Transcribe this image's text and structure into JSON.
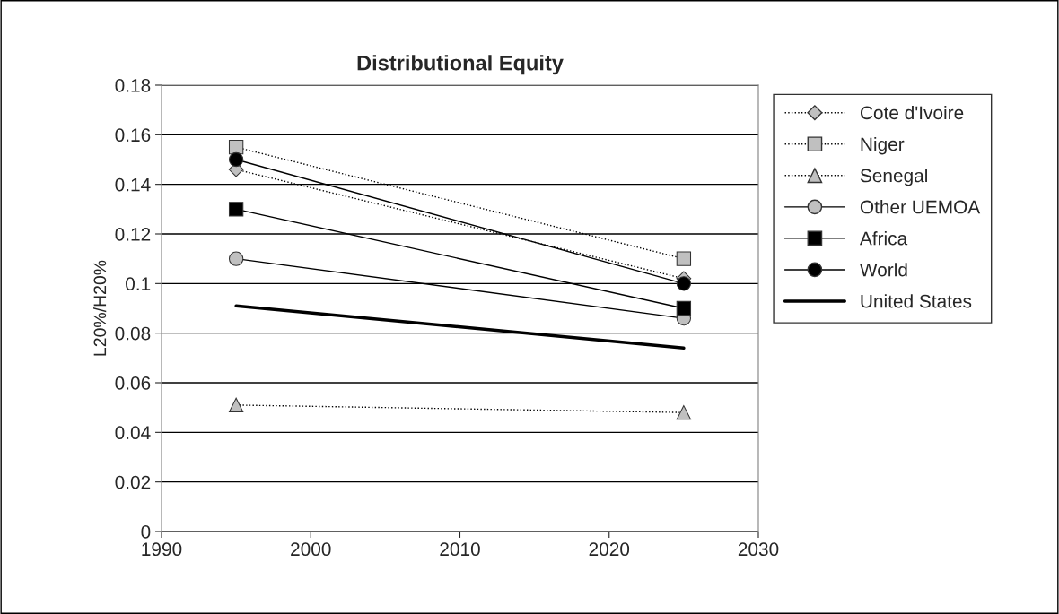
{
  "chart_data": {
    "type": "line",
    "title": "Distributional Equity",
    "ylabel": "L20%/H20%",
    "x": [
      1995,
      2025
    ],
    "series": [
      {
        "name": "Cote d'Ivoire",
        "color": "#c0c0c0",
        "marker": "diamond",
        "line_style": "dotted",
        "values": [
          0.146,
          0.102
        ]
      },
      {
        "name": "Niger",
        "color": "#c0c0c0",
        "marker": "square",
        "line_style": "dotted",
        "values": [
          0.155,
          0.11
        ]
      },
      {
        "name": "Senegal",
        "color": "#c0c0c0",
        "marker": "triangle",
        "line_style": "dotted",
        "values": [
          0.051,
          0.048
        ]
      },
      {
        "name": "Other UEMOA",
        "color": "#c0c0c0",
        "marker": "circle",
        "line_style": "solid",
        "values": [
          0.11,
          0.086
        ]
      },
      {
        "name": "Africa",
        "color": "#000000",
        "marker": "square",
        "line_style": "solid",
        "values": [
          0.13,
          0.09
        ]
      },
      {
        "name": "World",
        "color": "#000000",
        "marker": "circle",
        "line_style": "solid",
        "values": [
          0.15,
          0.1
        ]
      },
      {
        "name": "United States",
        "color": "#000000",
        "marker": "none",
        "line_style": "solid",
        "values": [
          0.091,
          0.074
        ]
      }
    ],
    "xlim": [
      1990,
      2030
    ],
    "xticks": [
      1990,
      2000,
      2010,
      2020,
      2030
    ],
    "ylim": [
      0,
      0.18
    ],
    "yticks": [
      0,
      {
        "value": 0.02,
        "label": "0.02"
      },
      {
        "value": 0.04,
        "label": "0.04"
      },
      {
        "value": 0.06,
        "label": "0.06"
      },
      {
        "value": 0.08,
        "label": "0.08"
      },
      {
        "value": 0.1,
        "label": "0.1"
      },
      {
        "value": 0.12,
        "label": "0.12"
      },
      {
        "value": 0.14,
        "label": "0.14"
      },
      {
        "value": 0.16,
        "label": "0.16"
      },
      {
        "value": 0.18,
        "label": "0.18"
      }
    ],
    "grid": "y",
    "legend": "right"
  }
}
